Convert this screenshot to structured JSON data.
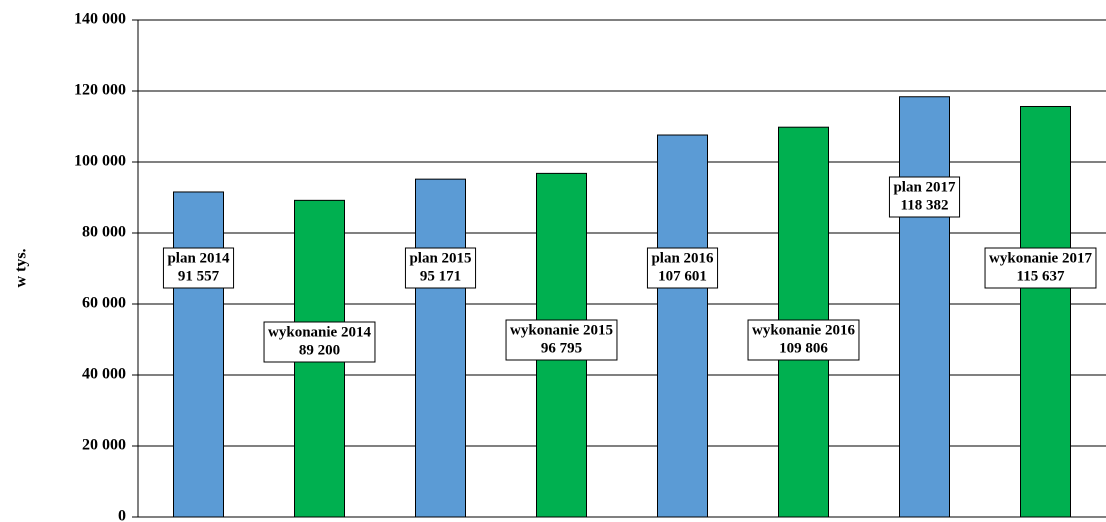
{
  "chart_data": {
    "type": "bar",
    "y_label": "w tys.",
    "categories": [
      "plan 2014",
      "wykonanie 2014",
      "plan 2015",
      "wykonanie 2015",
      "plan 2016",
      "wykonanie 2016",
      "plan 2017",
      "wykonanie 2017"
    ],
    "values": [
      91557,
      89200,
      95171,
      96795,
      107601,
      109806,
      118382,
      115637
    ],
    "value_labels": [
      "91 557",
      "89 200",
      "95 171",
      "96 795",
      "107 601",
      "109 806",
      "118 382",
      "115 637"
    ],
    "colors": [
      "#5b9bd5",
      "#00b050",
      "#5b9bd5",
      "#00b050",
      "#5b9bd5",
      "#00b050",
      "#5b9bd5",
      "#00b050"
    ],
    "ylim": [
      0,
      140000
    ],
    "yticks": [
      {
        "value": 0,
        "label": "0"
      },
      {
        "value": 20000,
        "label": "20 000"
      },
      {
        "value": 40000,
        "label": "40 000"
      },
      {
        "value": 60000,
        "label": "60 000"
      },
      {
        "value": 80000,
        "label": "80 000"
      },
      {
        "value": 100000,
        "label": "100 000"
      },
      {
        "value": 120000,
        "label": "120 000"
      },
      {
        "value": 140000,
        "label": "140 000"
      }
    ],
    "grid": true
  }
}
